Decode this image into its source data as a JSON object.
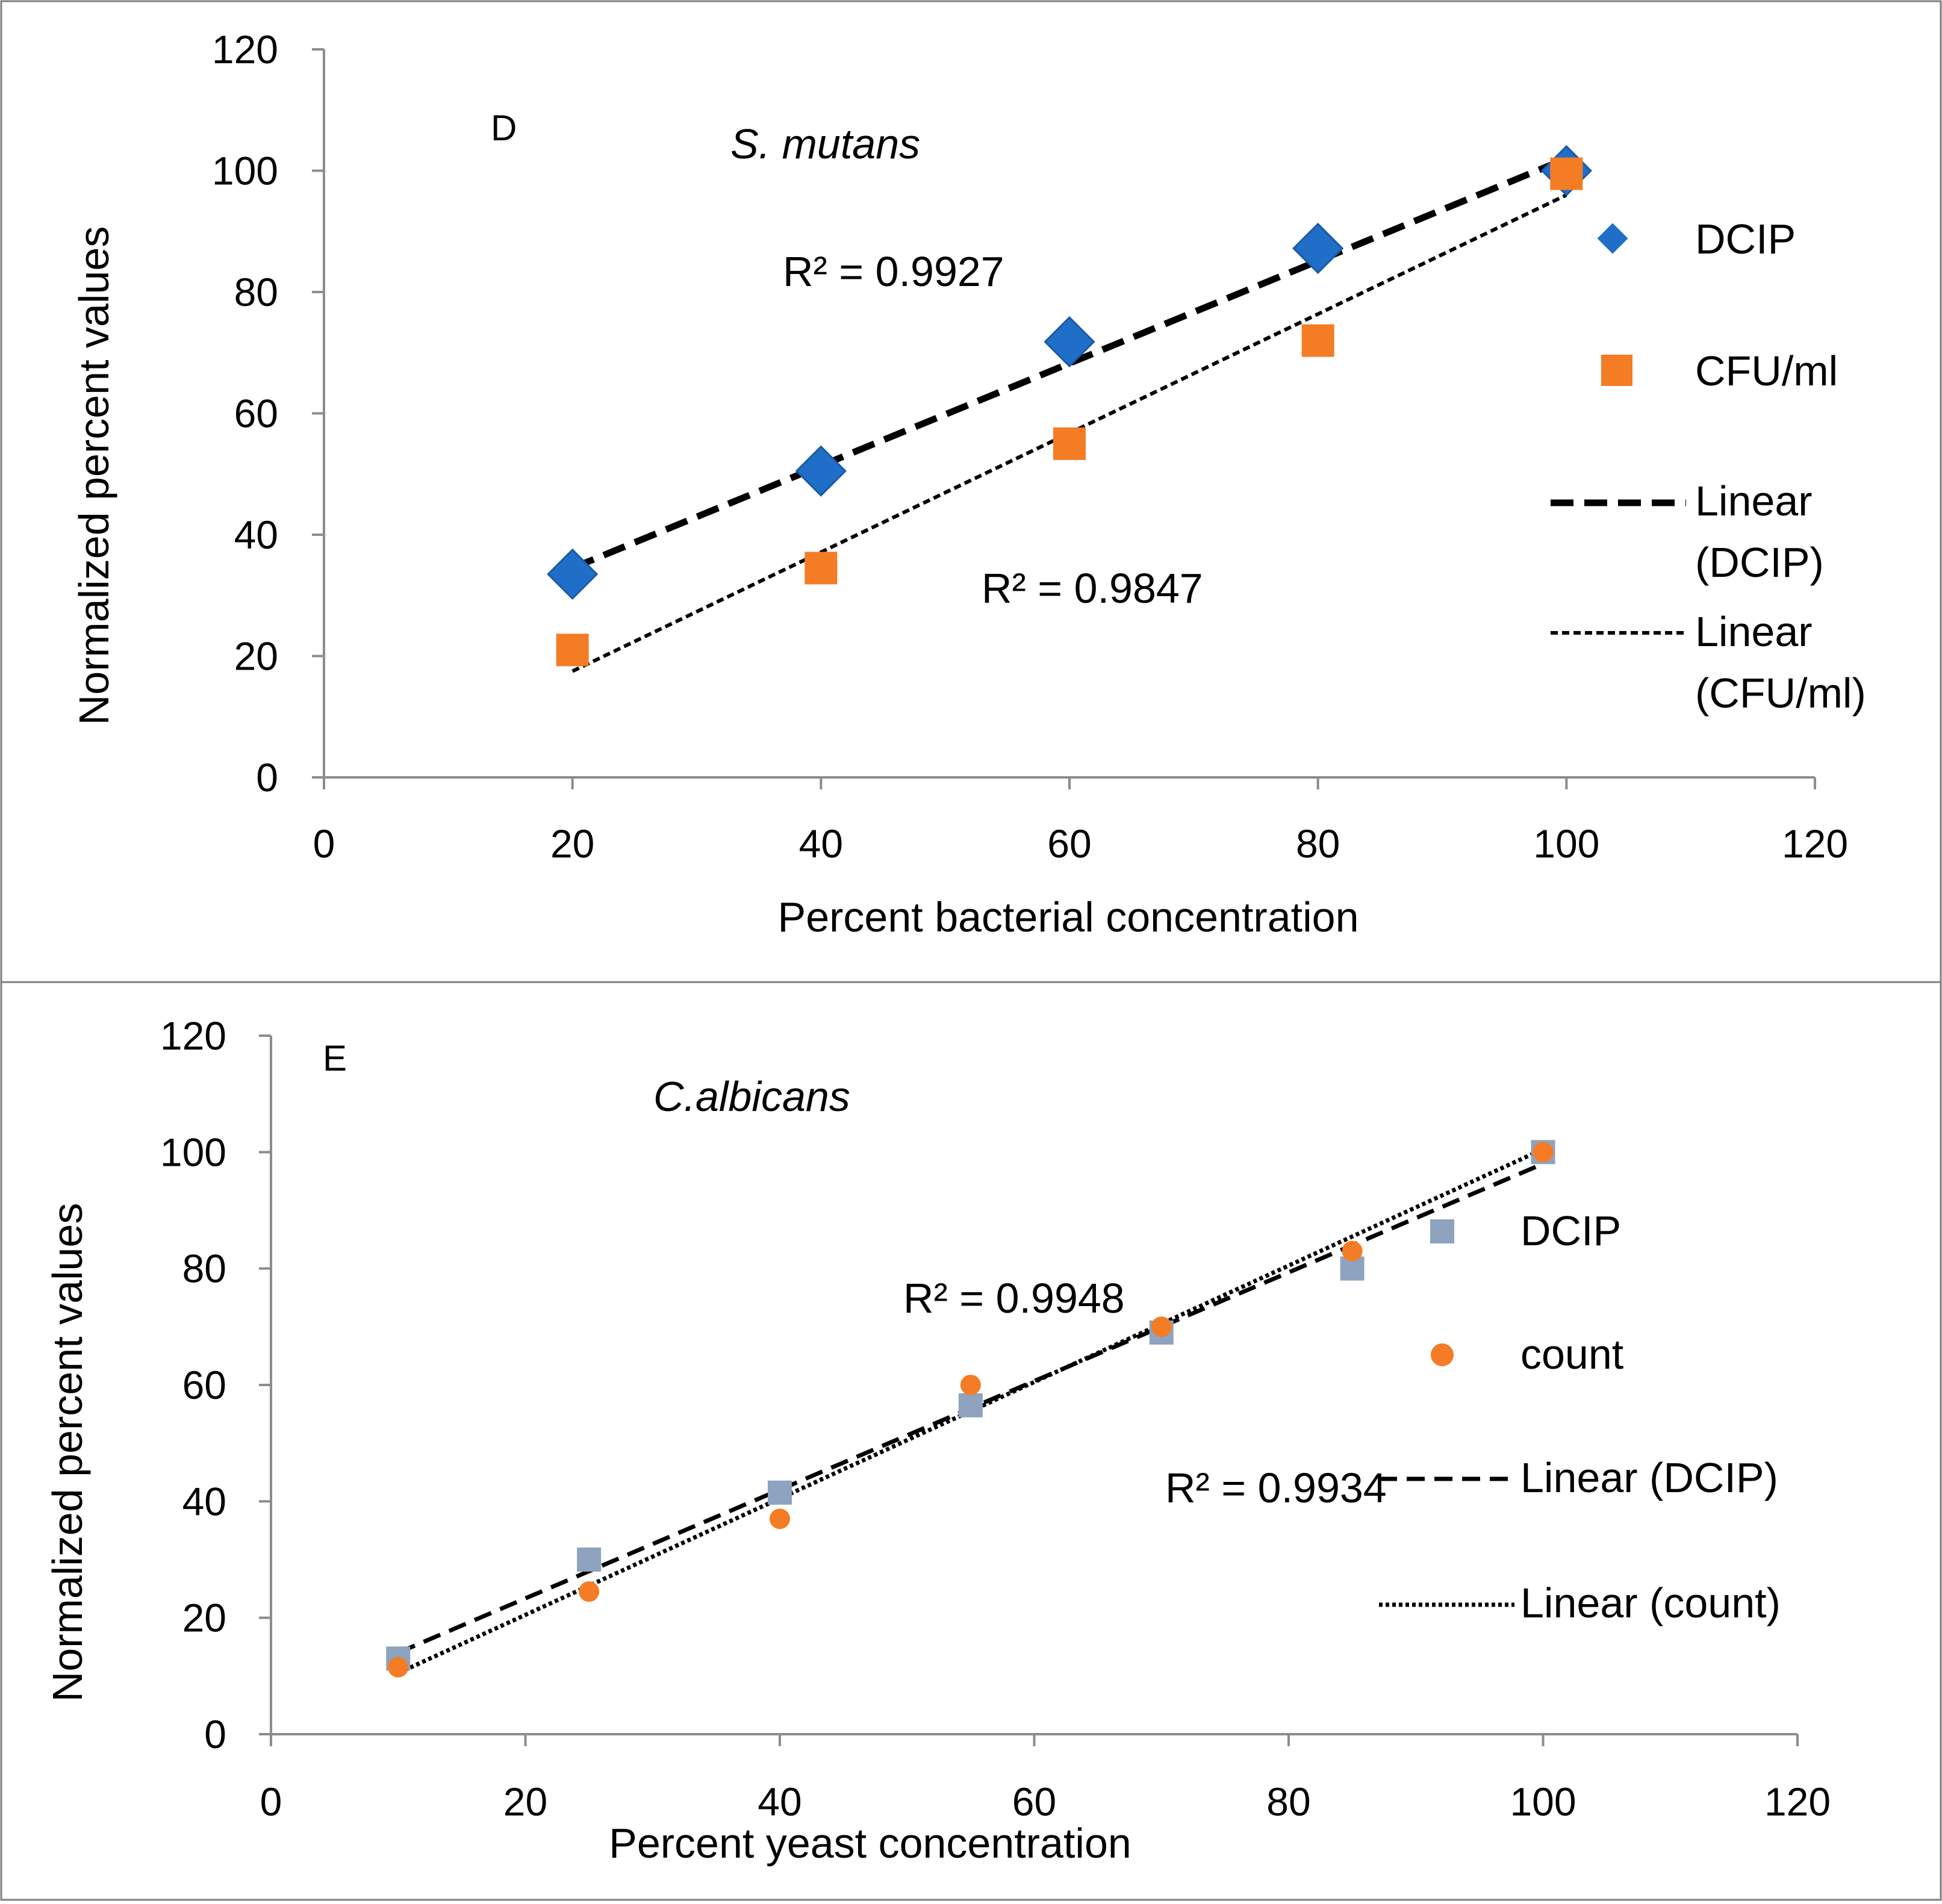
{
  "chart_data": [
    {
      "panel": "D",
      "type": "scatter",
      "species": "S. mutans",
      "xlabel": "Percent bacterial concentration",
      "ylabel": "Normalized percent values",
      "xlim": [
        0,
        120
      ],
      "ylim": [
        0,
        120
      ],
      "xticks": [
        "0",
        "20",
        "40",
        "60",
        "80",
        "100",
        "120"
      ],
      "yticks": [
        "0",
        "20",
        "40",
        "60",
        "80",
        "100",
        "120"
      ],
      "series": [
        {
          "name": "DCIP",
          "marker": "diamond",
          "color": "#1f6fc8",
          "x": [
            20,
            40,
            60,
            80,
            100
          ],
          "y": [
            33.5,
            50.5,
            71.8,
            87.2,
            100
          ]
        },
        {
          "name": "CFU/ml",
          "marker": "square",
          "color": "#f47c25",
          "x": [
            20,
            40,
            60,
            80,
            100
          ],
          "y": [
            21,
            34.5,
            55,
            72,
            99.5
          ]
        }
      ],
      "trendlines": [
        {
          "name": "Linear (DCIP)",
          "style": "dashed-thick",
          "x": [
            20,
            100
          ],
          "y": [
            34.5,
            102
          ],
          "r2": "R² = 0.9927"
        },
        {
          "name": "Linear (CFU/ml)",
          "style": "dashed-fine",
          "x": [
            20,
            100
          ],
          "y": [
            17.5,
            96
          ],
          "r2": "R² = 0.9847"
        }
      ],
      "legend": [
        "DCIP",
        "CFU/ml",
        "Linear",
        "(DCIP)",
        "Linear",
        "(CFU/ml)"
      ]
    },
    {
      "panel": "E",
      "type": "scatter",
      "species": "C.albicans",
      "xlabel": "Percent yeast concentration",
      "ylabel": "Normalized percent values",
      "xlim": [
        0,
        120
      ],
      "ylim": [
        0,
        120
      ],
      "xticks": [
        "0",
        "20",
        "40",
        "60",
        "80",
        "100",
        "120"
      ],
      "yticks": [
        "0",
        "20",
        "40",
        "60",
        "80",
        "100",
        "120"
      ],
      "series": [
        {
          "name": "DCIP",
          "marker": "square",
          "color": "#8da3bf",
          "x": [
            10,
            25,
            40,
            55,
            70,
            85,
            100
          ],
          "y": [
            13,
            30,
            41.5,
            56.5,
            69,
            80,
            100
          ]
        },
        {
          "name": "count",
          "marker": "circle",
          "color": "#f47c25",
          "x": [
            10,
            25,
            40,
            55,
            70,
            85,
            100
          ],
          "y": [
            11.5,
            24.5,
            37,
            60,
            70,
            83,
            100
          ]
        }
      ],
      "trendlines": [
        {
          "name": "Linear (DCIP)",
          "style": "dashed",
          "x": [
            10,
            100
          ],
          "y": [
            14,
            98
          ],
          "r2": "R² = 0.9934"
        },
        {
          "name": "Linear (count)",
          "style": "dotted",
          "x": [
            10,
            100
          ],
          "y": [
            10.5,
            100.5
          ],
          "r2": "R² = 0.9948"
        }
      ],
      "legend": [
        "DCIP",
        "count",
        "Linear (DCIP)",
        "Linear (count)"
      ]
    }
  ]
}
